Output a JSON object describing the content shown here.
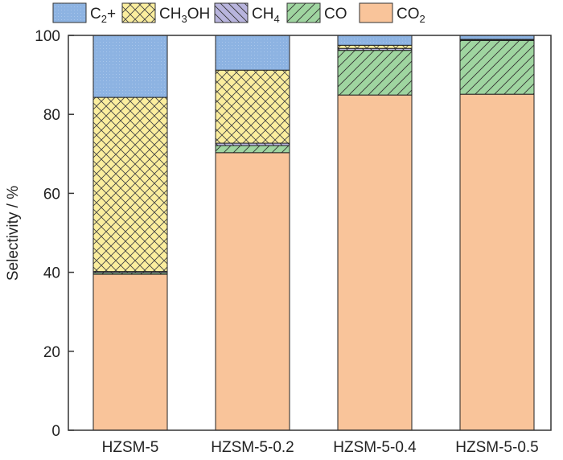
{
  "chart_data": {
    "type": "bar",
    "stacked": true,
    "title": "",
    "xlabel": "",
    "ylabel": "Selectivity / %",
    "ylim": [
      0,
      100
    ],
    "yticks": [
      0,
      20,
      40,
      60,
      80,
      100
    ],
    "categories": [
      "HZSM-5",
      "HZSM-5-0.2",
      "HZSM-5-0.4",
      "HZSM-5-0.5"
    ],
    "legend_position": "top",
    "series": [
      {
        "name": "CO2",
        "label_main": "CO",
        "label_sub": "2",
        "label_tail": "",
        "color": "#f9c49a",
        "pattern": "none",
        "values": [
          39.5,
          70.3,
          84.9,
          85.1
        ]
      },
      {
        "name": "CO",
        "label_main": "CO",
        "label_sub": "",
        "label_tail": "",
        "color": "#9fd5a0",
        "pattern": "diag-right",
        "values": [
          0.4,
          1.8,
          11.3,
          13.6
        ]
      },
      {
        "name": "CH4",
        "label_main": "CH",
        "label_sub": "4",
        "label_tail": "",
        "color": "#b8b4dd",
        "pattern": "diag-left",
        "values": [
          0.3,
          0.6,
          0.5,
          0.1
        ]
      },
      {
        "name": "CH3OH",
        "label_main": "CH",
        "label_sub": "3",
        "label_tail": "OH",
        "color": "#fbee9e",
        "pattern": "crosshatch",
        "values": [
          44.1,
          18.5,
          0.8,
          0.2
        ]
      },
      {
        "name": "C2+",
        "label_main": "C",
        "label_sub": "2",
        "label_tail": "+",
        "color": "#8db3e2",
        "pattern": "dots",
        "values": [
          15.7,
          8.8,
          2.5,
          1.0
        ]
      }
    ]
  }
}
